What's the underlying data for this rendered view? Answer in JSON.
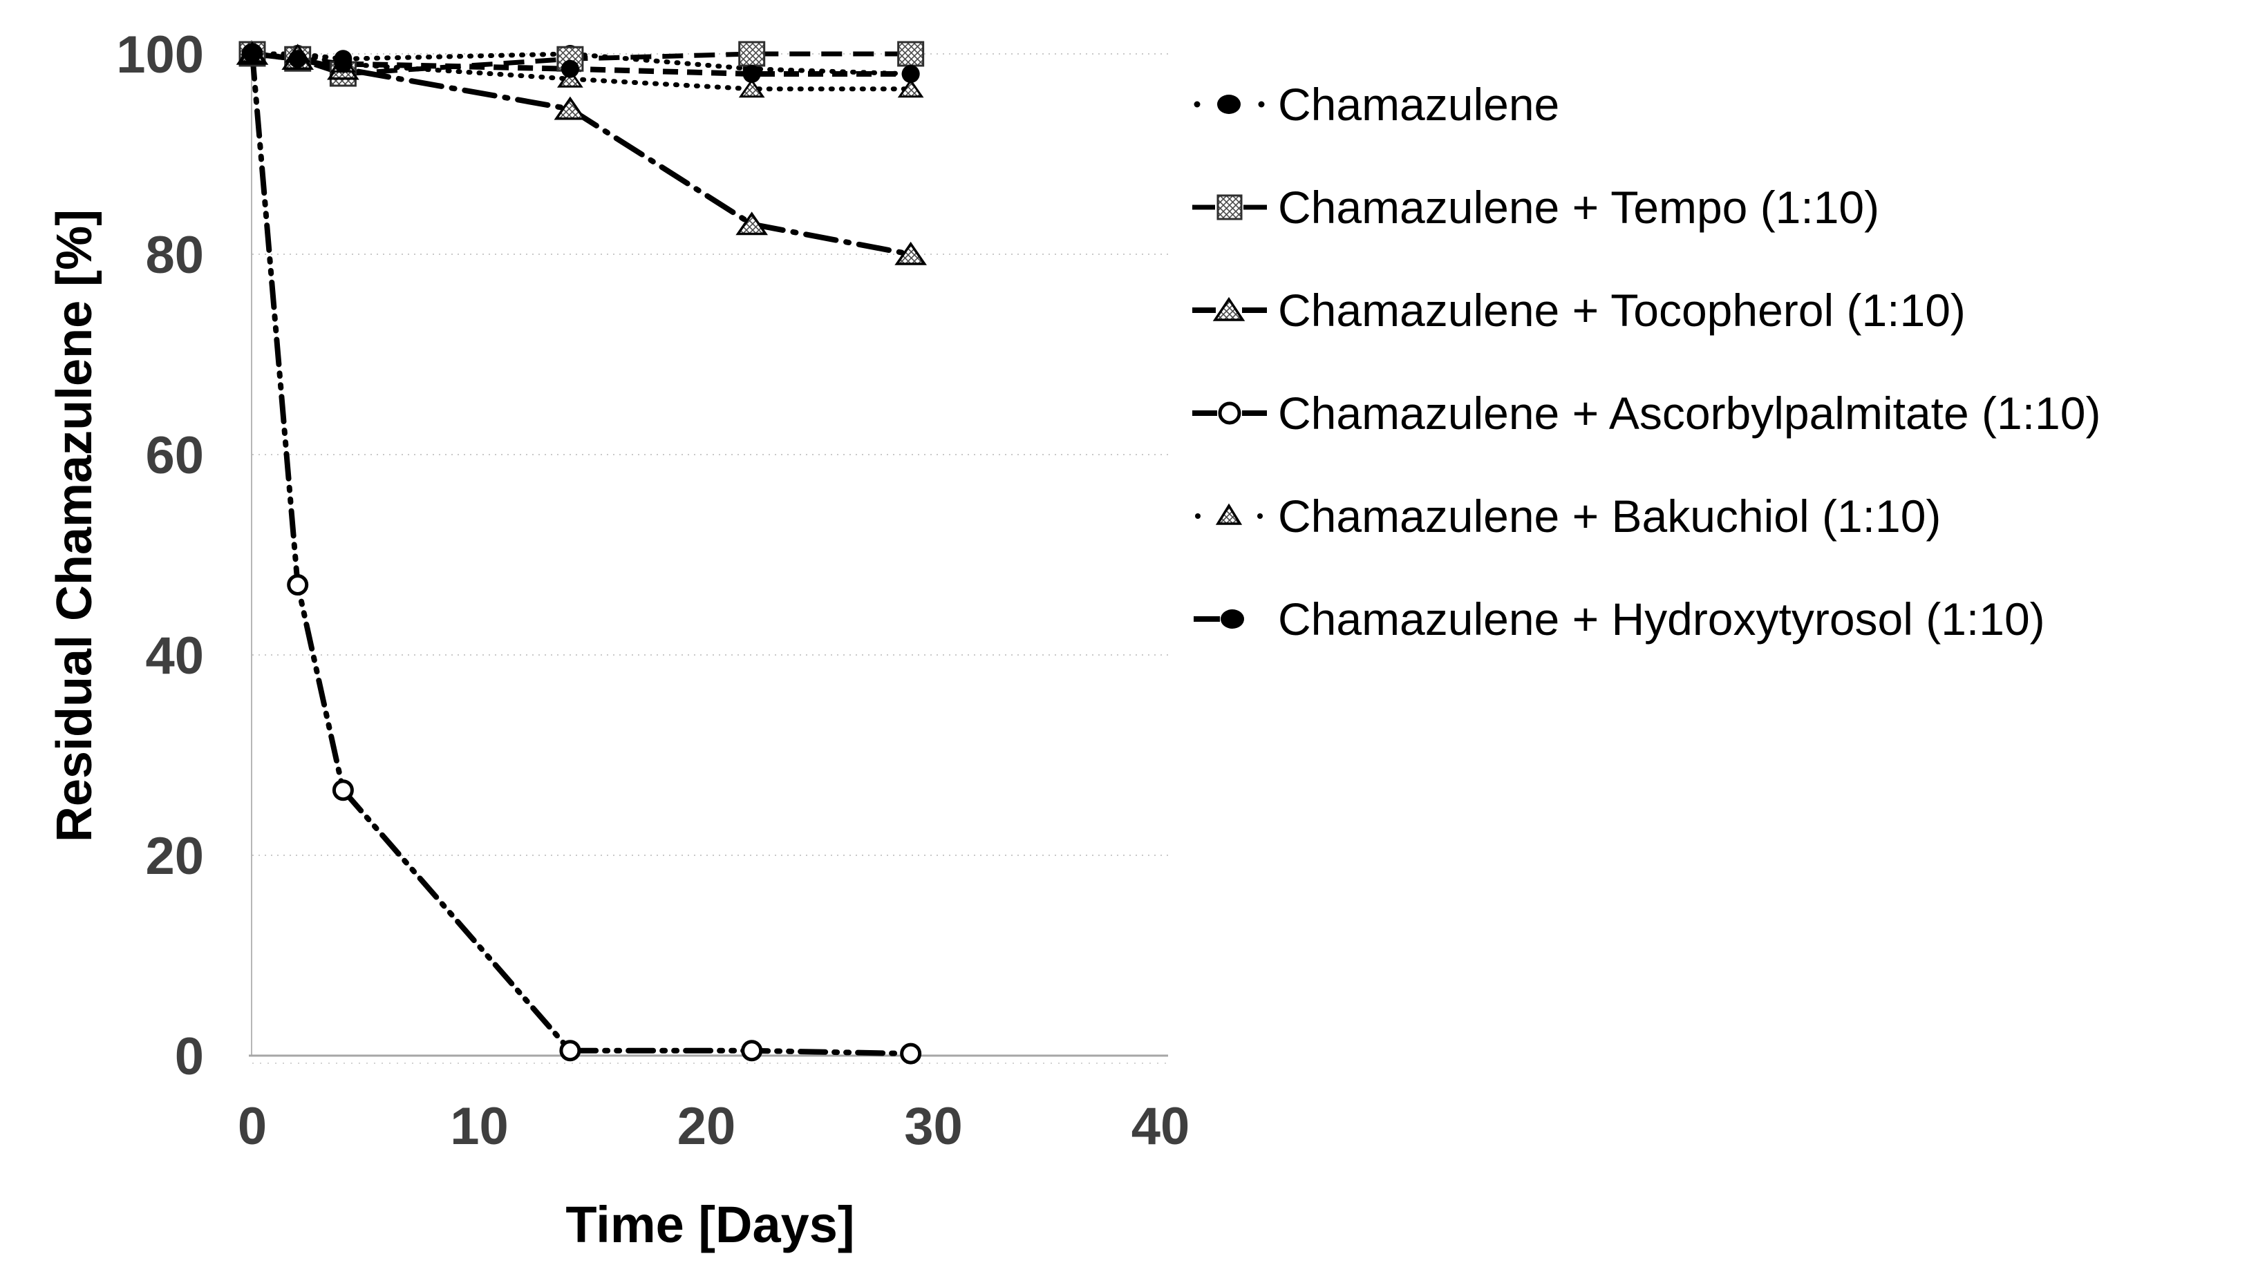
{
  "chart_data": {
    "type": "line",
    "title": "",
    "xlabel": "Time [Days]",
    "ylabel": "Residual Chamazulene [%]",
    "x_ticks": [
      0,
      10,
      20,
      30,
      40
    ],
    "y_ticks": [
      0,
      20,
      40,
      60,
      80,
      100
    ],
    "xlim": [
      0,
      40
    ],
    "ylim": [
      0,
      101.5
    ],
    "grid": "horizontal-dotted",
    "legend_position": "right",
    "x": [
      0,
      2,
      4,
      14,
      22,
      29
    ],
    "series": [
      {
        "name": "Chamazulene",
        "marker": "filled-circle",
        "line": "dotted",
        "values": [
          100,
          100,
          99.5,
          100,
          98.5,
          98
        ]
      },
      {
        "name": "Chamazulene + Tempo (1:10)",
        "marker": "hatched-square",
        "line": "dashed",
        "values": [
          100,
          99.5,
          98,
          99.5,
          100,
          100
        ]
      },
      {
        "name": "Chamazulene + Tocopherol (1:10)",
        "marker": "hatched-triangle",
        "line": "dash-dot",
        "values": [
          100,
          99.5,
          98.5,
          94.5,
          83,
          80
        ]
      },
      {
        "name": "Chamazulene + Ascorbylpalmitate (1:10)",
        "marker": "open-circle",
        "line": "dash-dot-dot",
        "values": [
          100,
          47,
          26.5,
          0.5,
          0.5,
          0.2
        ]
      },
      {
        "name": "Chamazulene + Bakuchiol (1:10)",
        "marker": "hatched-triangle-small",
        "line": "dotted",
        "values": [
          100,
          100,
          99,
          97.5,
          96.5,
          96.5
        ]
      },
      {
        "name": "Chamazulene + Hydroxytyrosol (1:10)",
        "marker": "filled-circle",
        "line": "dashed-short",
        "values": [
          100,
          99.5,
          99,
          98.5,
          98,
          98
        ]
      }
    ],
    "colors": {
      "series_line": "#000000",
      "tick_label": "#3f3f3f",
      "axis_title": "#000000",
      "gridline": "#c9c9c9",
      "x_axis_line": "#a6a6a6",
      "y_axis_line": "#b7b7b7",
      "background": "#ffffff"
    }
  }
}
